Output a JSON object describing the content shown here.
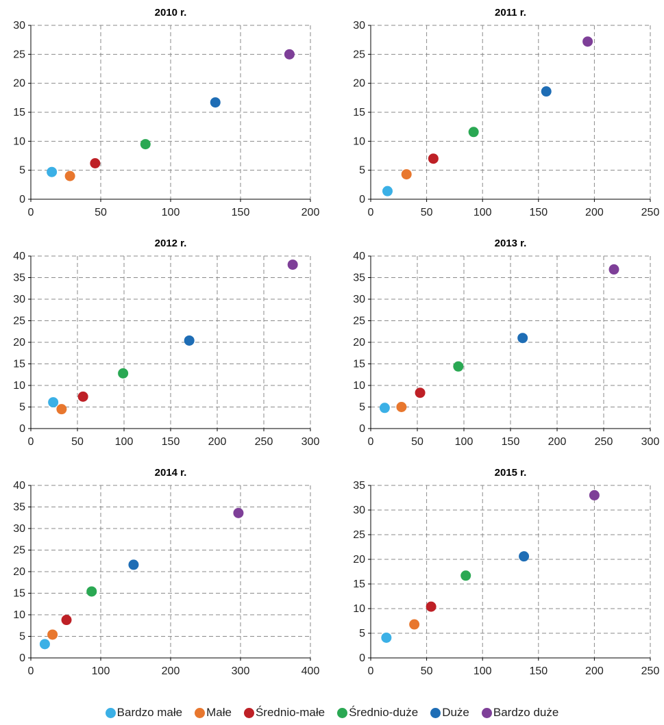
{
  "chart_data": [
    {
      "type": "scatter",
      "title": "2010 r.",
      "xlim": [
        0,
        200
      ],
      "xticks": [
        0,
        50,
        100,
        150,
        200
      ],
      "ylim": [
        0,
        30
      ],
      "yticks": [
        0,
        5,
        10,
        15,
        20,
        25,
        30
      ],
      "grid": true,
      "points": [
        {
          "series": "Bardzo małe",
          "x": 15,
          "y": 4.7
        },
        {
          "series": "Małe",
          "x": 28,
          "y": 4.0
        },
        {
          "series": "Średnio-małe",
          "x": 46,
          "y": 6.2
        },
        {
          "series": "Średnio-duże",
          "x": 82,
          "y": 9.5
        },
        {
          "series": "Duże",
          "x": 132,
          "y": 16.7
        },
        {
          "series": "Bardzo duże",
          "x": 185,
          "y": 25.0
        }
      ]
    },
    {
      "type": "scatter",
      "title": "2011 r.",
      "xlim": [
        0,
        250
      ],
      "xticks": [
        0,
        50,
        100,
        150,
        200,
        250
      ],
      "ylim": [
        0,
        30
      ],
      "yticks": [
        0,
        5,
        10,
        15,
        20,
        25,
        30
      ],
      "grid": true,
      "points": [
        {
          "series": "Bardzo małe",
          "x": 15,
          "y": 1.4
        },
        {
          "series": "Małe",
          "x": 32,
          "y": 4.3
        },
        {
          "series": "Średnio-małe",
          "x": 56,
          "y": 7.0
        },
        {
          "series": "Średnio-duże",
          "x": 92,
          "y": 11.6
        },
        {
          "series": "Duże",
          "x": 157,
          "y": 18.6
        },
        {
          "series": "Bardzo duże",
          "x": 194,
          "y": 27.2
        }
      ]
    },
    {
      "type": "scatter",
      "title": "2012 r.",
      "xlim": [
        0,
        300
      ],
      "xticks": [
        0,
        50,
        100,
        150,
        200,
        250,
        300
      ],
      "ylim": [
        0,
        40
      ],
      "yticks": [
        0,
        5,
        10,
        15,
        20,
        25,
        30,
        35,
        40
      ],
      "grid": true,
      "points": [
        {
          "series": "Bardzo małe",
          "x": 24,
          "y": 6.1
        },
        {
          "series": "Małe",
          "x": 33,
          "y": 4.5
        },
        {
          "series": "Średnio-małe",
          "x": 56,
          "y": 7.4
        },
        {
          "series": "Średnio-duże",
          "x": 99,
          "y": 12.8
        },
        {
          "series": "Duże",
          "x": 170,
          "y": 20.4
        },
        {
          "series": "Bardzo duże",
          "x": 281,
          "y": 38.0
        }
      ]
    },
    {
      "type": "scatter",
      "title": "2013 r.",
      "xlim": [
        0,
        300
      ],
      "xticks": [
        0,
        50,
        100,
        150,
        200,
        250,
        300
      ],
      "ylim": [
        0,
        40
      ],
      "yticks": [
        0,
        5,
        10,
        15,
        20,
        25,
        30,
        35,
        40
      ],
      "grid": true,
      "points": [
        {
          "series": "Bardzo małe",
          "x": 15,
          "y": 4.8
        },
        {
          "series": "Małe",
          "x": 33,
          "y": 5.0
        },
        {
          "series": "Średnio-małe",
          "x": 53,
          "y": 8.3
        },
        {
          "series": "Średnio-duże",
          "x": 94,
          "y": 14.4
        },
        {
          "series": "Duże",
          "x": 163,
          "y": 21.0
        },
        {
          "series": "Bardzo duże",
          "x": 261,
          "y": 36.9
        }
      ]
    },
    {
      "type": "scatter",
      "title": "2014 r.",
      "xlim": [
        0,
        400
      ],
      "xticks": [
        0,
        100,
        200,
        300,
        400
      ],
      "ylim": [
        0,
        40
      ],
      "yticks": [
        0,
        5,
        10,
        15,
        20,
        25,
        30,
        35,
        40
      ],
      "grid": true,
      "points": [
        {
          "series": "Bardzo małe",
          "x": 20,
          "y": 3.2
        },
        {
          "series": "Małe",
          "x": 31,
          "y": 5.4
        },
        {
          "series": "Średnio-małe",
          "x": 51,
          "y": 8.8
        },
        {
          "series": "Średnio-duże",
          "x": 87,
          "y": 15.4
        },
        {
          "series": "Duże",
          "x": 147,
          "y": 21.6
        },
        {
          "series": "Bardzo duże",
          "x": 297,
          "y": 33.6
        }
      ]
    },
    {
      "type": "scatter",
      "title": "2015 r.",
      "xlim": [
        0,
        250
      ],
      "xticks": [
        0,
        50,
        100,
        150,
        200,
        250
      ],
      "ylim": [
        0,
        35
      ],
      "yticks": [
        0,
        5,
        10,
        15,
        20,
        25,
        30,
        35
      ],
      "grid": true,
      "points": [
        {
          "series": "Bardzo małe",
          "x": 14,
          "y": 4.1
        },
        {
          "series": "Małe",
          "x": 39,
          "y": 6.8
        },
        {
          "series": "Średnio-małe",
          "x": 54,
          "y": 10.4
        },
        {
          "series": "Średnio-duże",
          "x": 85,
          "y": 16.7
        },
        {
          "series": "Duże",
          "x": 137,
          "y": 20.6
        },
        {
          "series": "Bardzo duże",
          "x": 200,
          "y": 33.0
        }
      ]
    }
  ],
  "legend": {
    "position": "bottom",
    "items": [
      {
        "label": "Bardzo małe",
        "color": "#3bb0e6"
      },
      {
        "label": "Małe",
        "color": "#e8772e"
      },
      {
        "label": "Średnio-małe",
        "color": "#be2026"
      },
      {
        "label": "Średnio-duże",
        "color": "#2aa853"
      },
      {
        "label": "Duże",
        "color": "#1e6db5"
      },
      {
        "label": "Bardzo duże",
        "color": "#7e3f98"
      }
    ]
  }
}
